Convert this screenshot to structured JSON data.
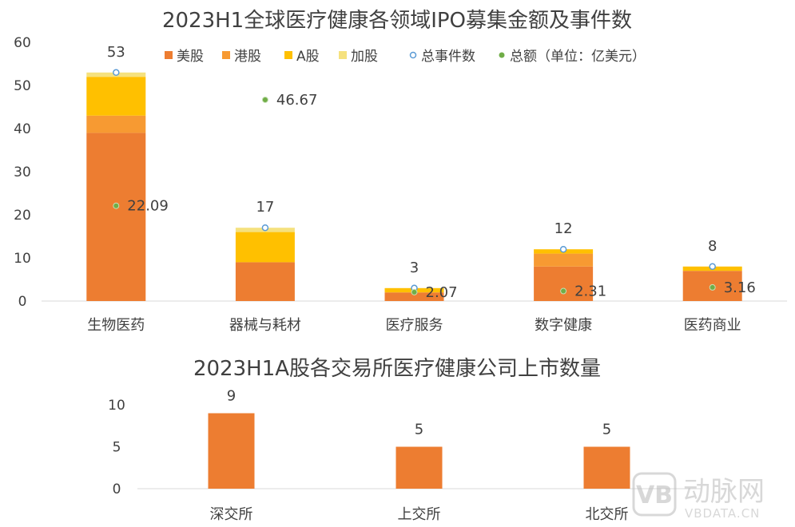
{
  "chart_data": [
    {
      "type": "bar",
      "stacked": true,
      "title": "2023H1全球医疗健康各领域IPO募集金额及事件数",
      "categories": [
        "生物医药",
        "器械与耗材",
        "医疗服务",
        "数字健康",
        "医药商业"
      ],
      "ylim": [
        0,
        60
      ],
      "yticks": [
        0,
        10,
        20,
        30,
        40,
        50,
        60
      ],
      "legend_position": "top",
      "series": [
        {
          "name": "美股",
          "color": "#ED7D31",
          "values": [
            39,
            9,
            2,
            8,
            7
          ]
        },
        {
          "name": "港股",
          "color": "#F79A32",
          "values": [
            4,
            0,
            0,
            3,
            0
          ]
        },
        {
          "name": "A股",
          "color": "#FFC000",
          "values": [
            9,
            7,
            1,
            1,
            1
          ]
        },
        {
          "name": "加股",
          "color": "#F5E17E",
          "values": [
            1,
            1,
            0,
            0,
            0
          ]
        }
      ],
      "markers": [
        {
          "name": "总事件数",
          "color": "#5B9BD5",
          "values": [
            53,
            17,
            3,
            12,
            8
          ],
          "labels": [
            "53",
            "17",
            "3",
            "12",
            "8"
          ]
        },
        {
          "name": "总额（单位：亿美元）",
          "color": "#70AD47",
          "values": [
            22.09,
            46.67,
            2.07,
            2.31,
            3.16
          ],
          "labels": [
            "22.09",
            "46.67",
            "2.07",
            "2.31",
            "3.16"
          ]
        }
      ]
    },
    {
      "type": "bar",
      "title": "2023H1A股各交易所医疗健康公司上市数量",
      "categories": [
        "深交所",
        "上交所",
        "北交所"
      ],
      "values": [
        9,
        5,
        5
      ],
      "labels": [
        "9",
        "5",
        "5"
      ],
      "color": "#ED7D31",
      "ylim": [
        0,
        10
      ],
      "yticks": [
        0,
        5,
        10
      ]
    }
  ],
  "watermark": {
    "brand": "动脉网",
    "url": "VBDATA.CN"
  }
}
